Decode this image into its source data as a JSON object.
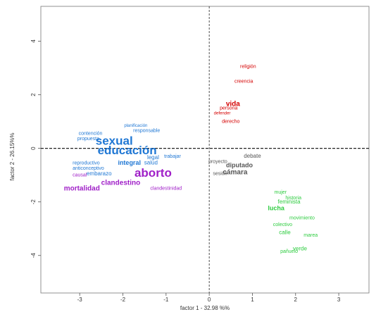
{
  "chart_data": {
    "type": "scatter",
    "xlabel": "factor 1 - 32.98 %%",
    "ylabel": "factor 2 - 26.15%%",
    "xlim": [
      -3.9,
      3.7
    ],
    "ylim": [
      -5.4,
      5.3
    ],
    "xticks": [
      -3,
      -2,
      -1,
      0,
      1,
      2,
      3
    ],
    "yticks": [
      -4,
      -2,
      0,
      2,
      4
    ],
    "grid": false,
    "reference_lines": {
      "x": 0,
      "y": 0,
      "style": "dashed"
    },
    "colors": {
      "red": "#d40000",
      "blue": "#1f77d4",
      "purple": "#a020c8",
      "gray": "#555555",
      "green": "#2ecc40"
    },
    "labeled_terms": [
      {
        "text": "sexual",
        "x": -2.2,
        "y": 0.25,
        "color": "blue",
        "size": 17
      },
      {
        "text": "educación",
        "x": -1.9,
        "y": -0.1,
        "color": "blue",
        "size": 17
      },
      {
        "text": "contención",
        "x": -2.75,
        "y": 0.55,
        "color": "blue",
        "size": 7
      },
      {
        "text": "propuesta",
        "x": -2.8,
        "y": 0.35,
        "color": "blue",
        "size": 7
      },
      {
        "text": "planificación",
        "x": -1.7,
        "y": 0.85,
        "color": "blue",
        "size": 6
      },
      {
        "text": "responsable",
        "x": -1.45,
        "y": 0.65,
        "color": "blue",
        "size": 7
      },
      {
        "text": "integral",
        "x": -1.85,
        "y": -0.55,
        "color": "blue",
        "size": 9
      },
      {
        "text": "salud",
        "x": -1.35,
        "y": -0.55,
        "color": "blue",
        "size": 8
      },
      {
        "text": "legal",
        "x": -1.3,
        "y": -0.35,
        "color": "blue",
        "size": 8
      },
      {
        "text": "embarazo",
        "x": -2.55,
        "y": -0.95,
        "color": "blue",
        "size": 8
      },
      {
        "text": "reproductivo",
        "x": -2.85,
        "y": -0.55,
        "color": "blue",
        "size": 7
      },
      {
        "text": "anticonceptivo",
        "x": -2.8,
        "y": -0.75,
        "color": "blue",
        "size": 7
      },
      {
        "text": "trabajar",
        "x": -0.85,
        "y": -0.3,
        "color": "blue",
        "size": 7
      },
      {
        "text": "aborto",
        "x": -1.3,
        "y": -0.95,
        "color": "purple",
        "size": 17
      },
      {
        "text": "clandestino",
        "x": -2.05,
        "y": -1.3,
        "color": "purple",
        "size": 10
      },
      {
        "text": "mortalidad",
        "x": -2.95,
        "y": -1.5,
        "color": "purple",
        "size": 10
      },
      {
        "text": "clandestinidad",
        "x": -1.0,
        "y": -1.5,
        "color": "purple",
        "size": 7
      },
      {
        "text": "causal",
        "x": -3.0,
        "y": -1.0,
        "color": "purple",
        "size": 7
      },
      {
        "text": "vida",
        "x": 0.55,
        "y": 1.65,
        "color": "red",
        "size": 10
      },
      {
        "text": "religión",
        "x": 0.9,
        "y": 3.05,
        "color": "red",
        "size": 7
      },
      {
        "text": "creencia",
        "x": 0.8,
        "y": 2.5,
        "color": "red",
        "size": 7
      },
      {
        "text": "persona",
        "x": 0.45,
        "y": 1.5,
        "color": "red",
        "size": 7
      },
      {
        "text": "derecho",
        "x": 0.5,
        "y": 1.0,
        "color": "red",
        "size": 7
      },
      {
        "text": "defender",
        "x": 0.3,
        "y": 1.3,
        "color": "red",
        "size": 6
      },
      {
        "text": "cámara",
        "x": 0.6,
        "y": -0.9,
        "color": "gray",
        "size": 10
      },
      {
        "text": "diputado",
        "x": 0.7,
        "y": -0.65,
        "color": "gray",
        "size": 9
      },
      {
        "text": "debate",
        "x": 1.0,
        "y": -0.3,
        "color": "gray",
        "size": 8
      },
      {
        "text": "proyecto",
        "x": 0.2,
        "y": -0.5,
        "color": "gray",
        "size": 7
      },
      {
        "text": "sesión",
        "x": 0.25,
        "y": -0.95,
        "color": "gray",
        "size": 7
      },
      {
        "text": "lucha",
        "x": 1.55,
        "y": -2.25,
        "color": "green",
        "size": 9
      },
      {
        "text": "feminista",
        "x": 1.85,
        "y": -2.0,
        "color": "green",
        "size": 8
      },
      {
        "text": "historia",
        "x": 1.95,
        "y": -1.85,
        "color": "green",
        "size": 7
      },
      {
        "text": "calle",
        "x": 1.75,
        "y": -3.15,
        "color": "green",
        "size": 8
      },
      {
        "text": "verde",
        "x": 2.1,
        "y": -3.75,
        "color": "green",
        "size": 8
      },
      {
        "text": "mujer",
        "x": 1.65,
        "y": -1.65,
        "color": "green",
        "size": 7
      },
      {
        "text": "pañuelo",
        "x": 1.85,
        "y": -3.85,
        "color": "green",
        "size": 7
      },
      {
        "text": "marea",
        "x": 2.35,
        "y": -3.25,
        "color": "green",
        "size": 7
      },
      {
        "text": "colectivo",
        "x": 1.7,
        "y": -2.85,
        "color": "green",
        "size": 7
      },
      {
        "text": "movimiento",
        "x": 2.15,
        "y": -2.6,
        "color": "green",
        "size": 7
      }
    ]
  }
}
